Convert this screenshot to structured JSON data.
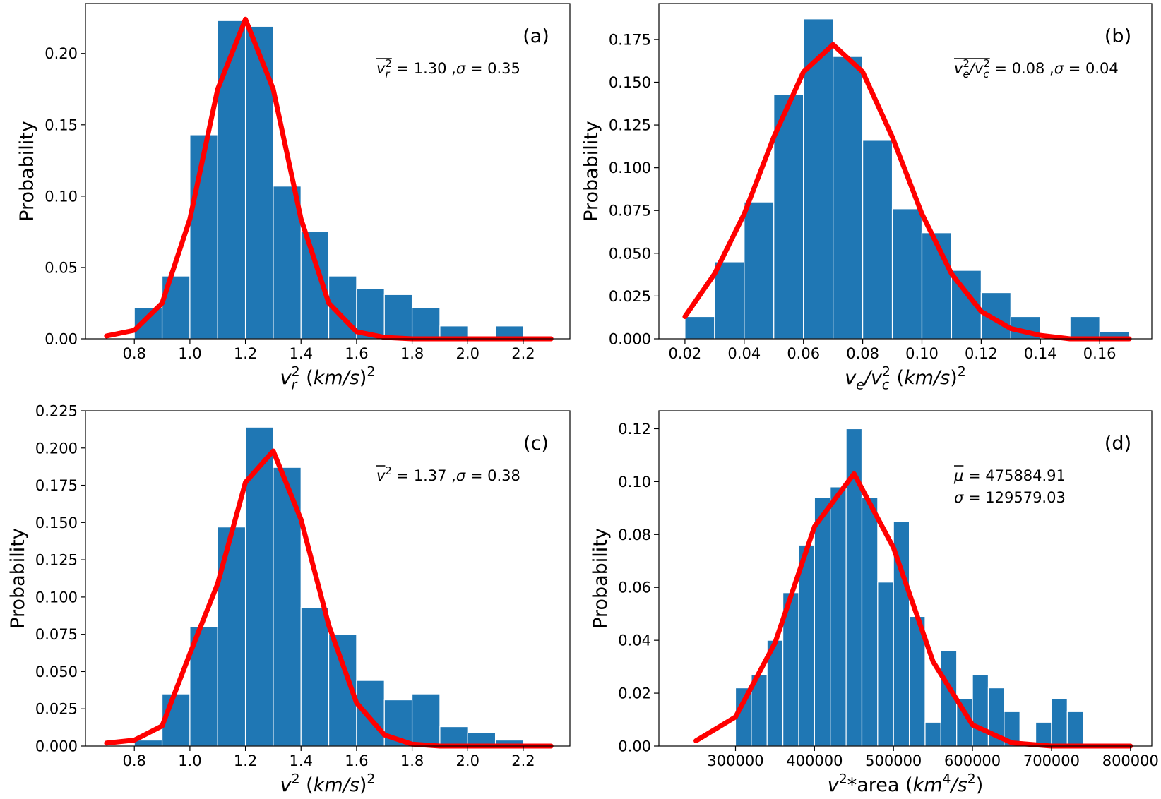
{
  "chart_data": [
    {
      "type": "histogram",
      "panel_label": "(a)",
      "xlabel": [
        {
          "text": "v",
          "italic": true
        },
        {
          "text": "r",
          "italic": true,
          "shift": "sub"
        },
        {
          "text": "2",
          "shift": "sup"
        },
        {
          "text": " ("
        },
        {
          "text": "km/s",
          "italic": true
        },
        {
          "text": ")"
        },
        {
          "text": "2",
          "shift": "sup"
        }
      ],
      "ylabel": "Probability",
      "annotation": [
        [
          {
            "text": "v",
            "italic": true,
            "over": true
          },
          {
            "text": "r",
            "italic": true,
            "shift": "sub",
            "over": true
          },
          {
            "text": "2",
            "shift": "sup",
            "over": true
          },
          {
            "text": " = 1.30 ,"
          },
          {
            "text": "σ",
            "italic": true
          },
          {
            "text": " = 0.35"
          }
        ]
      ],
      "color": "#1f77b4",
      "bins": [
        0.8,
        0.9,
        1.0,
        1.1,
        1.2,
        1.3,
        1.4,
        1.5,
        1.6,
        1.7,
        1.8,
        1.9,
        2.0,
        2.1,
        2.2
      ],
      "values": [
        0.022,
        0.044,
        0.143,
        0.223,
        0.219,
        0.107,
        0.075,
        0.044,
        0.035,
        0.031,
        0.022,
        0.009,
        0,
        0.009
      ],
      "fit": {
        "color": "#ff0000",
        "x": [
          0.7,
          0.8,
          0.9,
          1.0,
          1.1,
          1.2,
          1.3,
          1.4,
          1.5,
          1.6,
          1.7,
          1.8,
          1.9,
          2.0,
          2.1,
          2.2,
          2.3
        ],
        "values": [
          0.002,
          0.006,
          0.025,
          0.084,
          0.175,
          0.224,
          0.175,
          0.084,
          0.025,
          0.005,
          0.001,
          0,
          0,
          0,
          0,
          0,
          0
        ]
      },
      "xlim": [
        0.624,
        2.368
      ],
      "ylim": [
        0,
        0.235
      ],
      "xticks": [
        0.8,
        {
          "value": 1.0,
          "label": "1.0"
        },
        1.2,
        1.4,
        1.6,
        1.8,
        {
          "value": 2.0,
          "label": "2.0"
        },
        2.2
      ],
      "yticks": [
        {
          "value": 0,
          "label": "0.00"
        },
        0.05,
        {
          "value": 0.1,
          "label": "0.10"
        },
        0.15,
        {
          "value": 0.2,
          "label": "0.20"
        }
      ]
    },
    {
      "type": "histogram",
      "panel_label": "(b)",
      "xlabel": [
        {
          "text": "v",
          "italic": true
        },
        {
          "text": "e",
          "italic": true,
          "shift": "sub"
        },
        {
          "text": "/v",
          "italic": true
        },
        {
          "text": "c",
          "italic": true,
          "shift": "sub"
        },
        {
          "text": "2",
          "shift": "sup"
        },
        {
          "text": " ("
        },
        {
          "text": "km/s",
          "italic": true
        },
        {
          "text": ")"
        },
        {
          "text": "2",
          "shift": "sup"
        }
      ],
      "ylabel": "Probability",
      "annotation": [
        [
          {
            "text": "v",
            "italic": true,
            "over": true
          },
          {
            "text": "e",
            "italic": true,
            "shift": "sub",
            "over": true
          },
          {
            "text": "2",
            "shift": "sup",
            "over": true
          },
          {
            "text": "/",
            "italic": true
          },
          {
            "text": "v",
            "italic": true,
            "over": true
          },
          {
            "text": "c",
            "italic": true,
            "shift": "sub",
            "over": true
          },
          {
            "text": "2",
            "shift": "sup",
            "over": true
          },
          {
            "text": " = 0.08 ,"
          },
          {
            "text": "σ",
            "italic": true
          },
          {
            "text": " = 0.04"
          }
        ]
      ],
      "color": "#1f77b4",
      "bins": [
        0.02,
        0.03,
        0.04,
        0.05,
        0.06,
        0.07,
        0.08,
        0.09,
        0.1,
        0.11,
        0.12,
        0.13,
        0.14,
        0.15,
        0.16,
        0.17
      ],
      "values": [
        0.013,
        0.045,
        0.08,
        0.143,
        0.187,
        0.165,
        0.116,
        0.076,
        0.062,
        0.04,
        0.027,
        0.013,
        0,
        0.013,
        0.004
      ],
      "fit": {
        "color": "#ff0000",
        "x": [
          0.02,
          0.03,
          0.04,
          0.05,
          0.06,
          0.07,
          0.08,
          0.09,
          0.1,
          0.11,
          0.12,
          0.13,
          0.14,
          0.15,
          0.16,
          0.17
        ],
        "values": [
          0.013,
          0.038,
          0.073,
          0.118,
          0.156,
          0.172,
          0.156,
          0.118,
          0.073,
          0.038,
          0.016,
          0.006,
          0.002,
          0,
          0,
          0
        ]
      },
      "xlim": [
        0.0112,
        0.1776
      ],
      "ylim": [
        0,
        0.196
      ],
      "xticks": [
        0.02,
        0.04,
        0.06,
        0.08,
        {
          "value": 0.1,
          "label": "0.10"
        },
        0.12,
        0.14,
        0.16
      ],
      "yticks": [
        {
          "value": 0,
          "label": "0.000"
        },
        0.025,
        {
          "value": 0.05,
          "label": "0.050"
        },
        0.075,
        {
          "value": 0.1,
          "label": "0.100"
        },
        0.125,
        {
          "value": 0.15,
          "label": "0.150"
        },
        0.175
      ]
    },
    {
      "type": "histogram",
      "panel_label": "(c)",
      "xlabel": [
        {
          "text": "v",
          "italic": true
        },
        {
          "text": "2",
          "shift": "sup"
        },
        {
          "text": " ("
        },
        {
          "text": "km/s",
          "italic": true
        },
        {
          "text": ")"
        },
        {
          "text": "2",
          "shift": "sup"
        }
      ],
      "ylabel": "Probability",
      "annotation": [
        [
          {
            "text": "v",
            "italic": true,
            "over": true
          },
          {
            "text": "2",
            "shift": "sup"
          },
          {
            "text": " = 1.37 ,"
          },
          {
            "text": "σ",
            "italic": true
          },
          {
            "text": " = 0.38"
          }
        ]
      ],
      "color": "#1f77b4",
      "bins": [
        0.8,
        0.9,
        1.0,
        1.1,
        1.2,
        1.3,
        1.4,
        1.5,
        1.6,
        1.7,
        1.8,
        1.9,
        2.0,
        2.1,
        2.2
      ],
      "values": [
        0.004,
        0.035,
        0.08,
        0.147,
        0.214,
        0.187,
        0.093,
        0.075,
        0.044,
        0.031,
        0.035,
        0.013,
        0.009,
        0.004
      ],
      "fit": {
        "color": "#ff0000",
        "x": [
          0.7,
          0.8,
          0.9,
          1.0,
          1.1,
          1.2,
          1.3,
          1.4,
          1.5,
          1.6,
          1.7,
          1.8,
          1.9,
          2.0,
          2.1,
          2.2,
          2.3
        ],
        "values": [
          0.002,
          0.004,
          0.0135,
          0.062,
          0.109,
          0.177,
          0.198,
          0.152,
          0.081,
          0.029,
          0.0075,
          0.0013,
          0,
          0,
          0,
          0,
          0
        ]
      },
      "xlim": [
        0.624,
        2.368
      ],
      "ylim": [
        0,
        0.225
      ],
      "xticks": [
        0.8,
        {
          "value": 1.0,
          "label": "1.0"
        },
        1.2,
        1.4,
        1.6,
        1.8,
        {
          "value": 2.0,
          "label": "2.0"
        },
        2.2
      ],
      "yticks": [
        {
          "value": 0,
          "label": "0.000"
        },
        0.025,
        {
          "value": 0.05,
          "label": "0.050"
        },
        0.075,
        {
          "value": 0.1,
          "label": "0.100"
        },
        0.125,
        {
          "value": 0.15,
          "label": "0.150"
        },
        0.175,
        {
          "value": 0.2,
          "label": "0.200"
        },
        0.225
      ]
    },
    {
      "type": "histogram",
      "panel_label": "(d)",
      "xlabel": [
        {
          "text": "v",
          "italic": true
        },
        {
          "text": "2",
          "shift": "sup"
        },
        {
          "text": "*area ("
        },
        {
          "text": "km",
          "italic": true
        },
        {
          "text": "4",
          "shift": "sup"
        },
        {
          "text": "/s",
          "italic": true
        },
        {
          "text": "2",
          "shift": "sup"
        },
        {
          "text": ")"
        }
      ],
      "ylabel": "Probability",
      "annotation": [
        [
          {
            "text": "μ",
            "italic": true,
            "over": true
          },
          {
            "text": " = 475884.91"
          }
        ],
        [
          {
            "text": "σ",
            "italic": true
          },
          {
            "text": " = 129579.03"
          }
        ]
      ],
      "color": "#1f77b4",
      "bins": [
        300000,
        320000,
        340000,
        360000,
        380000,
        400000,
        420000,
        440000,
        460000,
        480000,
        500000,
        520000,
        540000,
        560000,
        580000,
        600000,
        620000,
        640000,
        660000,
        680000,
        700000,
        720000,
        740000
      ],
      "values": [
        0.022,
        0.027,
        0.04,
        0.058,
        0.076,
        0.094,
        0.098,
        0.12,
        0.094,
        0.062,
        0.085,
        0.049,
        0.009,
        0.036,
        0.018,
        0.027,
        0.022,
        0.013,
        0,
        0.009,
        0.018,
        0.013
      ],
      "fit": {
        "color": "#ff0000",
        "x": [
          250000,
          300000,
          350000,
          400000,
          450000,
          500000,
          550000,
          600000,
          650000,
          700000,
          750000,
          800000
        ],
        "values": [
          0.002,
          0.011,
          0.039,
          0.083,
          0.103,
          0.075,
          0.032,
          0.008,
          0.0012,
          0,
          0,
          0
        ]
      },
      "xlim": [
        203000,
        827000
      ],
      "ylim": [
        0,
        0.1268
      ],
      "xticks": [
        300000,
        400000,
        500000,
        600000,
        700000,
        800000
      ],
      "yticks": [
        {
          "value": 0,
          "label": "0.00"
        },
        0.02,
        0.04,
        0.06,
        0.08,
        {
          "value": 0.1,
          "label": "0.10"
        },
        0.12
      ]
    }
  ]
}
